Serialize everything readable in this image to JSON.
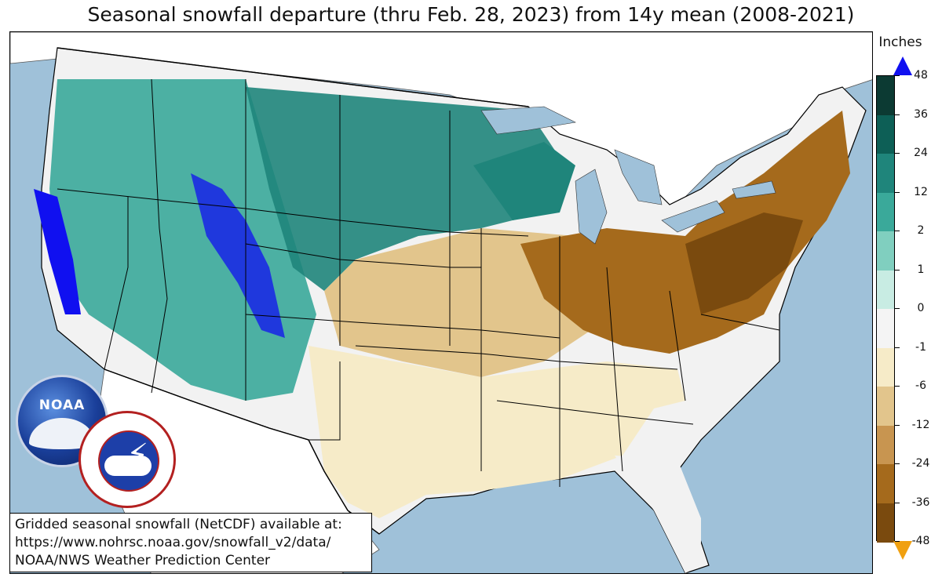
{
  "title": "Seasonal snowfall departure (thru Feb. 28, 2023) from 14y mean (2008-2021)",
  "colorbar": {
    "title": "Inches",
    "ticks": [
      "48",
      "36",
      "24",
      "12",
      "2",
      "1",
      "0",
      "-1",
      "-6",
      "-12",
      "-24",
      "-36",
      "-48"
    ],
    "colors": [
      "#0c3a33",
      "#0d5f56",
      "#1f857b",
      "#3aa99a",
      "#80cfbf",
      "#c8ece3",
      "#f4f4f4",
      "#f6ebc8",
      "#e2c58c",
      "#c89550",
      "#a56a1c",
      "#7a4a0e",
      "#4c3008"
    ],
    "over_color": "#1010f0",
    "under_color": "#f0a010"
  },
  "info": {
    "line1": "Gridded seasonal snowfall (NetCDF) available at:",
    "line2": "https://www.nohrsc.noaa.gov/snowfall_v2/data/",
    "line3": "NOAA/NWS Weather Prediction Center"
  },
  "logos": {
    "noaa": "NOAA",
    "nws_ring": "NATIONAL WEATHER SERVICE"
  },
  "map_colors": {
    "ocean": "#9fc1d9",
    "land_foreign": "#ffffff",
    "no_change": "#f2f2f2",
    "state_line": "#000000"
  }
}
